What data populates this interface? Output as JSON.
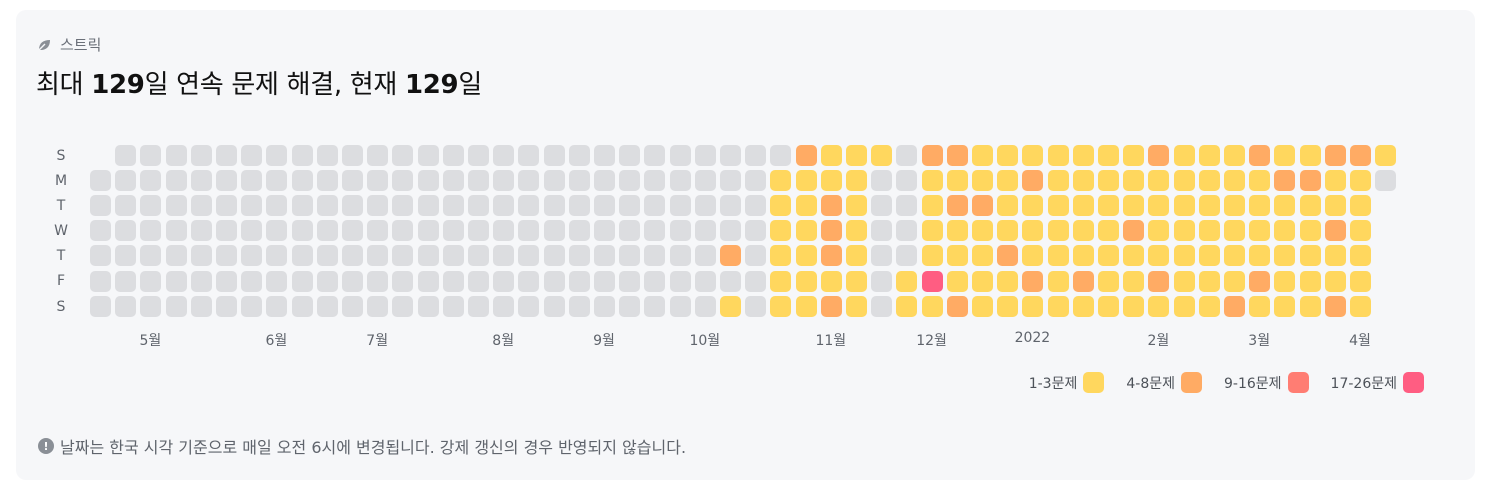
{
  "header": {
    "label": "스트릭",
    "icon": "leaf-icon"
  },
  "title": {
    "prefix": "최대 ",
    "max_value": "129",
    "mid": "일 연속 문제 해결, 현재 ",
    "current_value": "129",
    "suffix": "일"
  },
  "days": [
    "S",
    "M",
    "T",
    "W",
    "T",
    "F",
    "S"
  ],
  "months": [
    {
      "label": "5월",
      "week": 2
    },
    {
      "label": "6월",
      "week": 7
    },
    {
      "label": "7월",
      "week": 11
    },
    {
      "label": "8월",
      "week": 16
    },
    {
      "label": "9월",
      "week": 20
    },
    {
      "label": "10월",
      "week": 24
    },
    {
      "label": "11월",
      "week": 29
    },
    {
      "label": "12월",
      "week": 33
    },
    {
      "label": "2022",
      "week": 37
    },
    {
      "label": "2월",
      "week": 42
    },
    {
      "label": "3월",
      "week": 46
    },
    {
      "label": "4월",
      "week": 50
    }
  ],
  "levels": [
    "#dcdde0",
    "#ffd75e",
    "#ffab64",
    "#ff7d73",
    "#ff5d82"
  ],
  "heatmap": [
    "_000000000000000000000000000211102211111112111211221",
    "0000000000000000000000000001111001111211111111122110",
    "000000000000000000000000000112100122111111111111111",
    "000000000000000000000000000112100111111112111111121",
    "000000000000000000000000020112100111211111111111111",
    "000000000000000000000000000111101411121211211121111",
    "000000000000000000000000010112101121111111111211121"
  ],
  "legend": [
    {
      "label": "1-3문제",
      "level": 1
    },
    {
      "label": "4-8문제",
      "level": 2
    },
    {
      "label": "9-16문제",
      "level": 3
    },
    {
      "label": "17-26문제",
      "level": 4
    }
  ],
  "note": "날짜는 한국 시각 기준으로 매일 오전 6시에 변경됩니다. 강제 갱신의 경우 반영되지 않습니다."
}
